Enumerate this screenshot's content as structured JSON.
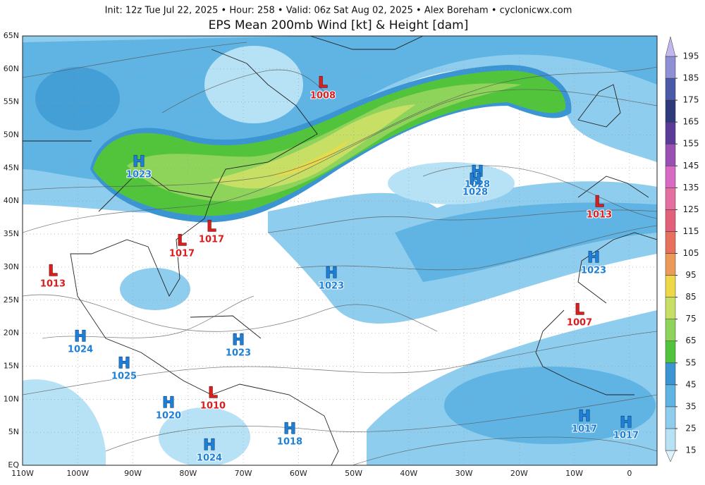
{
  "header": {
    "info": "Init: 12z Tue Jul 22, 2025  •  Hour: 258  •  Valid: 06z Sat Aug 02, 2025  •  Alex Boreham  •  cyclonicwx.com",
    "title": "EPS Mean 200mb Wind [kt] & Height [dam]"
  },
  "map": {
    "lat_labels": [
      "65N",
      "60N",
      "55N",
      "50N",
      "45N",
      "40N",
      "35N",
      "30N",
      "25N",
      "20N",
      "15N",
      "10N",
      "5N",
      "EQ"
    ],
    "lon_labels": [
      "110W",
      "100W",
      "90W",
      "80W",
      "70W",
      "60W",
      "50W",
      "40W",
      "30W",
      "20W",
      "10W",
      "0"
    ],
    "centers": [
      {
        "type": "L",
        "value": 1008
      },
      {
        "type": "H",
        "value": 1023
      },
      {
        "type": "H",
        "value": 1028
      },
      {
        "type": "H",
        "value": 1028
      },
      {
        "type": "L",
        "value": 1013
      },
      {
        "type": "L",
        "value": 1017
      },
      {
        "type": "L",
        "value": 1017
      },
      {
        "type": "L",
        "value": 1013
      },
      {
        "type": "H",
        "value": 1023
      },
      {
        "type": "H",
        "value": 1023
      },
      {
        "type": "L",
        "value": 1007
      },
      {
        "type": "H",
        "value": 1024
      },
      {
        "type": "H",
        "value": 1023
      },
      {
        "type": "H",
        "value": 1025
      },
      {
        "type": "L",
        "value": 1010
      },
      {
        "type": "H",
        "value": 1020
      },
      {
        "type": "H",
        "value": 1017
      },
      {
        "type": "H",
        "value": 1018
      },
      {
        "type": "H",
        "value": 1017
      },
      {
        "type": "H",
        "value": 1024
      }
    ],
    "high_color": "#1e7fd6",
    "low_color": "#d81e1e"
  },
  "colorbar": {
    "ticks": [
      15,
      25,
      35,
      45,
      55,
      65,
      75,
      85,
      95,
      105,
      115,
      125,
      135,
      145,
      155,
      165,
      175,
      185,
      195
    ],
    "colors": [
      "#dff2fb",
      "#b7e2f5",
      "#8fcdee",
      "#5fb4e3",
      "#3b95d2",
      "#52c43c",
      "#8fd45a",
      "#c6df64",
      "#eed84a",
      "#ec9a5a",
      "#e8705e",
      "#e2607a",
      "#e46fa1",
      "#d86ac4",
      "#9a4fb3",
      "#5b3b99",
      "#2f3a7a",
      "#4a5aa8",
      "#8f8fd6",
      "#c2b8ef"
    ]
  }
}
